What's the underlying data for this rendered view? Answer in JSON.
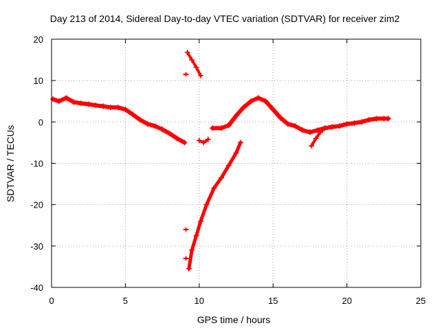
{
  "chart_data": {
    "type": "scatter",
    "title": "Day 213 of 2014, Sidereal Day-to-day VTEC variation (SDTVAR) for receiver zim2",
    "xlabel": "GPS time / hours",
    "ylabel": "SDTVAR / TECUs",
    "xlim": [
      0,
      25
    ],
    "ylim": [
      -40,
      20
    ],
    "xticks": [
      0,
      5,
      10,
      15,
      20,
      25
    ],
    "yticks": [
      -40,
      -30,
      -20,
      -10,
      0,
      10,
      20
    ],
    "grid": true,
    "color": "#ff0000",
    "series": [
      {
        "name": "main-trace",
        "x": [
          0.1,
          0.5,
          1.0,
          1.5,
          2.0,
          2.5,
          3.0,
          3.5,
          4.0,
          4.5,
          5.0,
          5.5,
          6.0,
          6.5,
          7.0,
          7.5,
          8.0,
          8.5,
          9.0
        ],
        "y": [
          5.5,
          5.0,
          5.8,
          4.8,
          4.5,
          4.3,
          4.0,
          3.8,
          3.5,
          3.5,
          3.0,
          1.8,
          0.5,
          -0.5,
          -1.0,
          -1.8,
          -2.8,
          -4.0,
          -5.0
        ]
      },
      {
        "name": "dip-segment",
        "x": [
          10.0,
          10.3,
          10.6
        ],
        "y": [
          -4.5,
          -5.0,
          -4.2
        ]
      },
      {
        "name": "recovery-trace",
        "x": [
          10.9,
          11.5,
          12.0,
          12.5,
          13.0,
          13.5,
          14.0,
          14.5,
          15.0,
          15.5,
          16.0,
          16.5,
          17.0,
          17.5,
          18.0,
          18.5,
          19.0,
          19.5,
          20.0,
          20.5,
          21.0,
          21.5,
          22.0,
          22.5,
          22.8
        ],
        "y": [
          -1.5,
          -1.5,
          -0.8,
          1.5,
          3.5,
          5.0,
          5.8,
          5.0,
          3.0,
          1.0,
          -0.5,
          -1.0,
          -2.0,
          -2.5,
          -2.0,
          -1.5,
          -1.2,
          -1.0,
          -0.5,
          -0.3,
          0.0,
          0.5,
          0.8,
          0.8,
          0.8
        ]
      },
      {
        "name": "late-branch",
        "x": [
          17.6,
          17.9,
          18.2,
          18.5
        ],
        "y": [
          -5.8,
          -4.0,
          -2.5,
          -1.5
        ]
      },
      {
        "name": "upper-steep-segment",
        "x": [
          9.2,
          9.5,
          9.8,
          10.1
        ],
        "y": [
          16.8,
          15.0,
          13.2,
          11.2
        ]
      },
      {
        "name": "lower-steep-trace",
        "x": [
          9.3,
          9.5,
          9.8,
          10.1,
          10.5,
          11.0,
          11.5,
          12.0,
          12.5,
          12.8
        ],
        "y": [
          -35.5,
          -31.0,
          -27.5,
          -24.0,
          -20.0,
          -16.0,
          -13.5,
          -10.5,
          -7.5,
          -5.0
        ]
      },
      {
        "name": "isolated-points",
        "x": [
          9.1,
          9.1,
          9.1
        ],
        "y": [
          11.5,
          -26.0,
          -33.0
        ]
      }
    ]
  }
}
